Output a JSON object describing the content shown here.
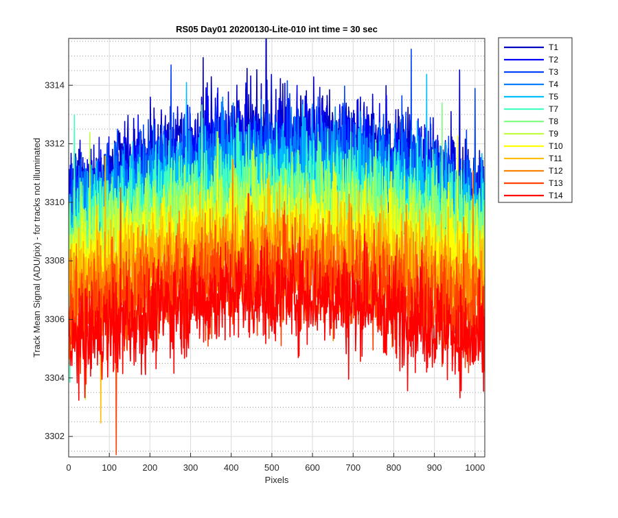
{
  "chart_data": {
    "type": "line",
    "title": "RS05 Day01 20200130-Lite-010 int time = 30 sec",
    "xlabel": "Pixels",
    "ylabel": "Track Mean Signal (ADU/pix) - for tracks not illuminated",
    "xlim": [
      0,
      1024
    ],
    "ylim": [
      3301.3,
      3315.6
    ],
    "x_ticks": [
      0,
      100,
      200,
      300,
      400,
      500,
      600,
      700,
      800,
      900,
      1000
    ],
    "x_tick_labels": [
      "0",
      "100",
      "200",
      "300",
      "400",
      "500",
      "600",
      "700",
      "800",
      "900",
      "1000"
    ],
    "y_ticks": [
      3302,
      3304,
      3306,
      3308,
      3310,
      3312,
      3314
    ],
    "y_tick_labels": [
      "3302",
      "3304",
      "3306",
      "3308",
      "3310",
      "3312",
      "3314"
    ],
    "grid": true,
    "minor_grid": true,
    "legend_position": "outside-top-right",
    "series": [
      {
        "name": "T1",
        "color": "#0000bf",
        "edge_mean": 3310.0,
        "center_mean": 3312.3,
        "noise": 0.85
      },
      {
        "name": "T2",
        "color": "#0000ff",
        "edge_mean": 3309.8,
        "center_mean": 3312.0,
        "noise": 0.85
      },
      {
        "name": "T3",
        "color": "#0040ff",
        "edge_mean": 3309.7,
        "center_mean": 3311.8,
        "noise": 0.85
      },
      {
        "name": "T4",
        "color": "#0080ff",
        "edge_mean": 3309.4,
        "center_mean": 3311.4,
        "noise": 0.85
      },
      {
        "name": "T5",
        "color": "#00bfff",
        "edge_mean": 3309.2,
        "center_mean": 3311.0,
        "noise": 0.85
      },
      {
        "name": "T7",
        "color": "#40ffbf",
        "edge_mean": 3308.9,
        "center_mean": 3310.6,
        "noise": 0.85
      },
      {
        "name": "T8",
        "color": "#80ff80",
        "edge_mean": 3308.5,
        "center_mean": 3310.1,
        "noise": 0.85
      },
      {
        "name": "T9",
        "color": "#bfff40",
        "edge_mean": 3308.1,
        "center_mean": 3309.6,
        "noise": 0.85
      },
      {
        "name": "T10",
        "color": "#ffff00",
        "edge_mean": 3307.6,
        "center_mean": 3309.1,
        "noise": 0.85
      },
      {
        "name": "T11",
        "color": "#ffbf00",
        "edge_mean": 3307.1,
        "center_mean": 3308.6,
        "noise": 0.85
      },
      {
        "name": "T12",
        "color": "#ff8000",
        "edge_mean": 3306.6,
        "center_mean": 3308.1,
        "noise": 0.85
      },
      {
        "name": "T13",
        "color": "#ff4000",
        "edge_mean": 3305.8,
        "center_mean": 3307.4,
        "noise": 0.85
      },
      {
        "name": "T14",
        "color": "#ff0000",
        "edge_mean": 3305.0,
        "center_mean": 3306.9,
        "noise": 0.85
      }
    ]
  }
}
